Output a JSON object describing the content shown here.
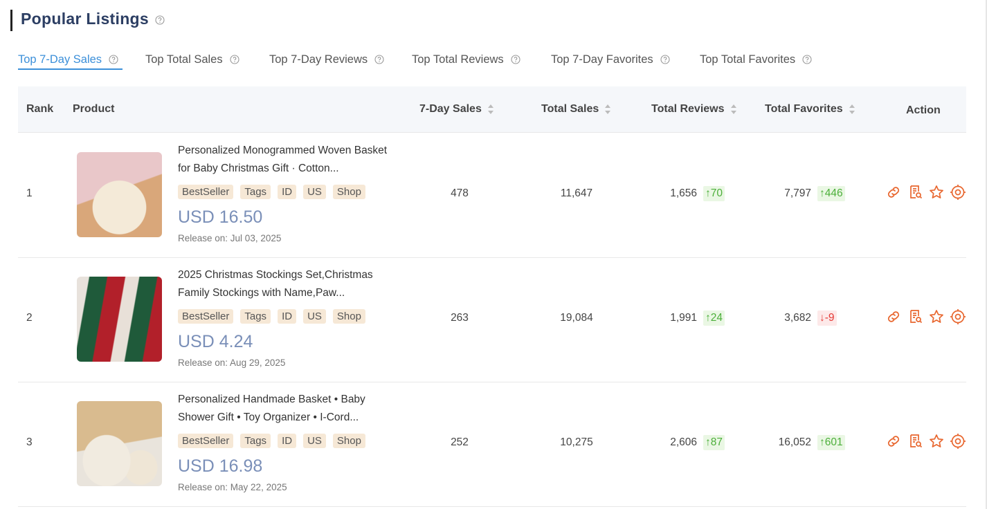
{
  "header": {
    "title": "Popular Listings"
  },
  "tabs": [
    "Top 7-Day Sales",
    "Top Total Sales",
    "Top 7-Day Reviews",
    "Top Total Reviews",
    "Top 7-Day Favorites",
    "Top Total Favorites"
  ],
  "table": {
    "columns": [
      "Rank",
      "Product",
      "7-Day Sales",
      "Total Sales",
      "Total Reviews",
      "Total Favorites",
      "Action"
    ],
    "rows": [
      {
        "rank": "1",
        "title": "Personalized Monogrammed Woven Basket for Baby Christmas Gift · Cotton...",
        "tags": [
          "BestSeller",
          "Tags",
          "ID",
          "US",
          "Shop"
        ],
        "price": "USD 16.50",
        "release": "Release on: Jul 03, 2025",
        "sales7": "478",
        "total_sales": "11,647",
        "reviews": "1,656",
        "reviews_delta": "↑70",
        "favorites": "7,797",
        "favorites_delta": "↑446"
      },
      {
        "rank": "2",
        "title": "2025 Christmas Stockings Set,Christmas Family Stockings with Name,Paw...",
        "tags": [
          "BestSeller",
          "Tags",
          "ID",
          "US",
          "Shop"
        ],
        "price": "USD 4.24",
        "release": "Release on: Aug 29, 2025",
        "sales7": "263",
        "total_sales": "19,084",
        "reviews": "1,991",
        "reviews_delta": "↑24",
        "favorites": "3,682",
        "favorites_delta": "↓-9"
      },
      {
        "rank": "3",
        "title": "Personalized Handmade Basket • Baby Shower Gift • Toy Organizer • I-Cord...",
        "tags": [
          "BestSeller",
          "Tags",
          "ID",
          "US",
          "Shop"
        ],
        "price": "USD 16.98",
        "release": "Release on: May 22, 2025",
        "sales7": "252",
        "total_sales": "10,275",
        "reviews": "2,606",
        "reviews_delta": "↑87",
        "favorites": "16,052",
        "favorites_delta": "↑601"
      }
    ]
  }
}
